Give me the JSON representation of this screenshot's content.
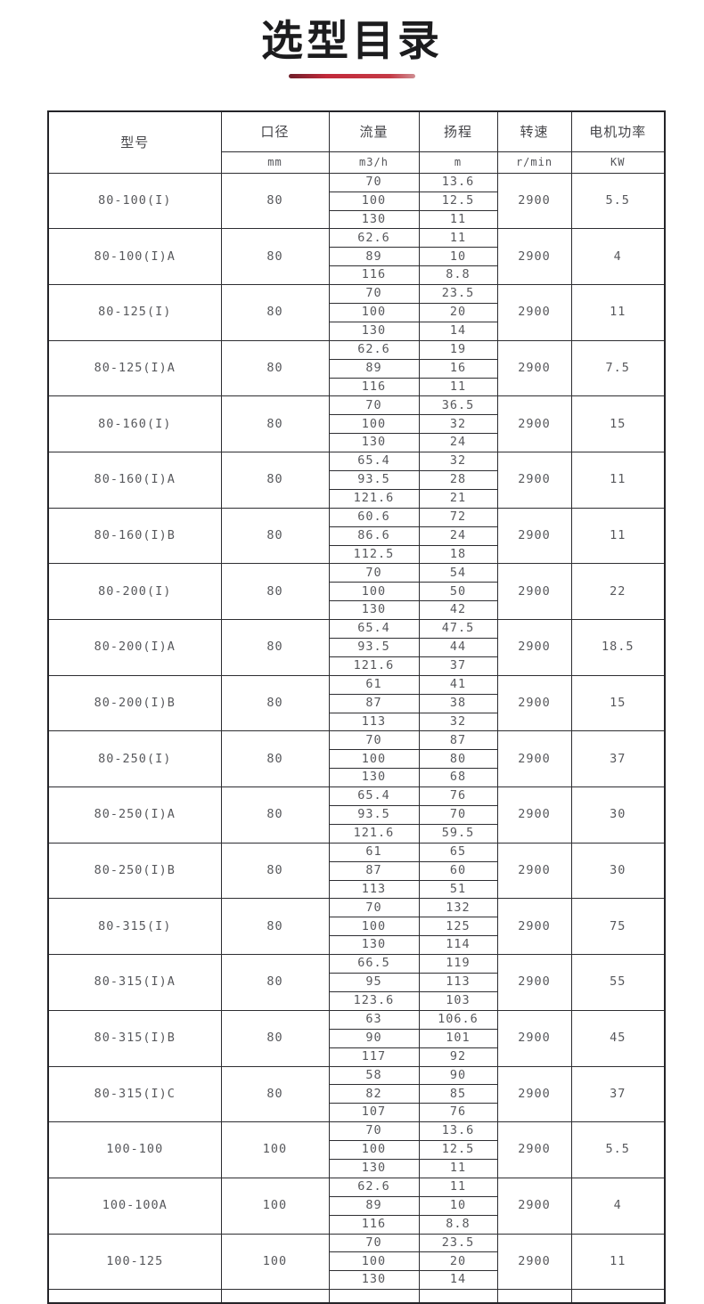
{
  "page": {
    "title": "选型目录",
    "accent_color_dark": "#6e1f2a",
    "accent_color_main": "#c2293a"
  },
  "table": {
    "headers": {
      "model": "型号",
      "diameter": "口径",
      "flow": "流量",
      "head": "扬程",
      "speed": "转速",
      "power": "电机功率"
    },
    "units": {
      "diameter": "mm",
      "flow": "m3/h",
      "head": "m",
      "speed": "r/min",
      "power": "KW"
    },
    "rows": [
      {
        "model": "80-100(I)",
        "diameter": "80",
        "speed": "2900",
        "power": "5.5",
        "points": [
          [
            "70",
            "13.6"
          ],
          [
            "100",
            "12.5"
          ],
          [
            "130",
            "11"
          ]
        ]
      },
      {
        "model": "80-100(I)A",
        "diameter": "80",
        "speed": "2900",
        "power": "4",
        "points": [
          [
            "62.6",
            "11"
          ],
          [
            "89",
            "10"
          ],
          [
            "116",
            "8.8"
          ]
        ]
      },
      {
        "model": "80-125(I)",
        "diameter": "80",
        "speed": "2900",
        "power": "11",
        "points": [
          [
            "70",
            "23.5"
          ],
          [
            "100",
            "20"
          ],
          [
            "130",
            "14"
          ]
        ]
      },
      {
        "model": "80-125(I)A",
        "diameter": "80",
        "speed": "2900",
        "power": "7.5",
        "points": [
          [
            "62.6",
            "19"
          ],
          [
            "89",
            "16"
          ],
          [
            "116",
            "11"
          ]
        ]
      },
      {
        "model": "80-160(I)",
        "diameter": "80",
        "speed": "2900",
        "power": "15",
        "points": [
          [
            "70",
            "36.5"
          ],
          [
            "100",
            "32"
          ],
          [
            "130",
            "24"
          ]
        ]
      },
      {
        "model": "80-160(I)A",
        "diameter": "80",
        "speed": "2900",
        "power": "11",
        "points": [
          [
            "65.4",
            "32"
          ],
          [
            "93.5",
            "28"
          ],
          [
            "121.6",
            "21"
          ]
        ]
      },
      {
        "model": "80-160(I)B",
        "diameter": "80",
        "speed": "2900",
        "power": "11",
        "points": [
          [
            "60.6",
            "72"
          ],
          [
            "86.6",
            "24"
          ],
          [
            "112.5",
            "18"
          ]
        ]
      },
      {
        "model": "80-200(I)",
        "diameter": "80",
        "speed": "2900",
        "power": "22",
        "points": [
          [
            "70",
            "54"
          ],
          [
            "100",
            "50"
          ],
          [
            "130",
            "42"
          ]
        ]
      },
      {
        "model": "80-200(I)A",
        "diameter": "80",
        "speed": "2900",
        "power": "18.5",
        "points": [
          [
            "65.4",
            "47.5"
          ],
          [
            "93.5",
            "44"
          ],
          [
            "121.6",
            "37"
          ]
        ]
      },
      {
        "model": "80-200(I)B",
        "diameter": "80",
        "speed": "2900",
        "power": "15",
        "points": [
          [
            "61",
            "41"
          ],
          [
            "87",
            "38"
          ],
          [
            "113",
            "32"
          ]
        ]
      },
      {
        "model": "80-250(I)",
        "diameter": "80",
        "speed": "2900",
        "power": "37",
        "points": [
          [
            "70",
            "87"
          ],
          [
            "100",
            "80"
          ],
          [
            "130",
            "68"
          ]
        ]
      },
      {
        "model": "80-250(I)A",
        "diameter": "80",
        "speed": "2900",
        "power": "30",
        "points": [
          [
            "65.4",
            "76"
          ],
          [
            "93.5",
            "70"
          ],
          [
            "121.6",
            "59.5"
          ]
        ]
      },
      {
        "model": "80-250(I)B",
        "diameter": "80",
        "speed": "2900",
        "power": "30",
        "points": [
          [
            "61",
            "65"
          ],
          [
            "87",
            "60"
          ],
          [
            "113",
            "51"
          ]
        ]
      },
      {
        "model": "80-315(I)",
        "diameter": "80",
        "speed": "2900",
        "power": "75",
        "points": [
          [
            "70",
            "132"
          ],
          [
            "100",
            "125"
          ],
          [
            "130",
            "114"
          ]
        ]
      },
      {
        "model": "80-315(I)A",
        "diameter": "80",
        "speed": "2900",
        "power": "55",
        "points": [
          [
            "66.5",
            "119"
          ],
          [
            "95",
            "113"
          ],
          [
            "123.6",
            "103"
          ]
        ]
      },
      {
        "model": "80-315(I)B",
        "diameter": "80",
        "speed": "2900",
        "power": "45",
        "points": [
          [
            "63",
            "106.6"
          ],
          [
            "90",
            "101"
          ],
          [
            "117",
            "92"
          ]
        ]
      },
      {
        "model": "80-315(I)C",
        "diameter": "80",
        "speed": "2900",
        "power": "37",
        "points": [
          [
            "58",
            "90"
          ],
          [
            "82",
            "85"
          ],
          [
            "107",
            "76"
          ]
        ]
      },
      {
        "model": "100-100",
        "diameter": "100",
        "speed": "2900",
        "power": "5.5",
        "points": [
          [
            "70",
            "13.6"
          ],
          [
            "100",
            "12.5"
          ],
          [
            "130",
            "11"
          ]
        ]
      },
      {
        "model": "100-100A",
        "diameter": "100",
        "speed": "2900",
        "power": "4",
        "points": [
          [
            "62.6",
            "11"
          ],
          [
            "89",
            "10"
          ],
          [
            "116",
            "8.8"
          ]
        ]
      },
      {
        "model": "100-125",
        "diameter": "100",
        "speed": "2900",
        "power": "11",
        "points": [
          [
            "70",
            "23.5"
          ],
          [
            "100",
            "20"
          ],
          [
            "130",
            "14"
          ]
        ]
      }
    ]
  }
}
